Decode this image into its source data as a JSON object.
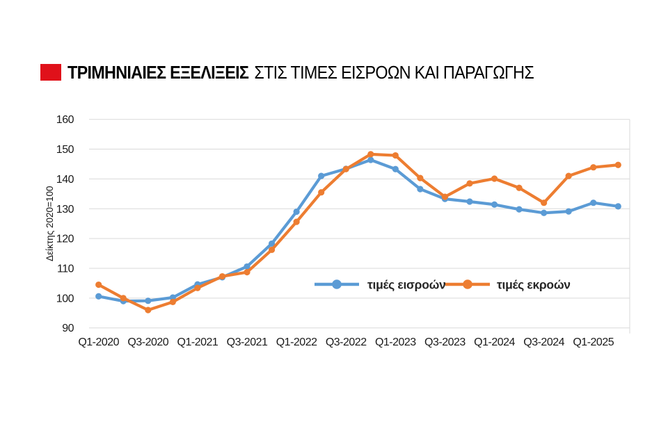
{
  "header": {
    "accent_color": "#e0111a",
    "title_bold": "ΤΡΙΜΗΝΙΑΙΕΣ ΕΞΕΛΙΞΕΙΣ",
    "title_rest": "ΣΤΙΣ ΤΙΜΕΣ ΕΙΣΡΟΩΝ ΚΑΙ ΠΑΡΑΓΩΓΗΣ"
  },
  "chart_data": {
    "type": "line",
    "title": "ΤΡΙΜΗΝΙΑΙΕΣ ΕΞΕΛΙΞΕΙΣ ΣΤΙΣ ΤΙΜΕΣ ΕΙΣΡΟΩΝ ΚΑΙ ΠΑΡΑΓΩΓΗΣ",
    "xlabel": "",
    "ylabel": "Δείκτης 2020=100",
    "ylim": [
      90,
      160
    ],
    "yticks": [
      90,
      100,
      110,
      120,
      130,
      140,
      150,
      160
    ],
    "grid": "horizontal",
    "legend_position": "inside-bottom-center",
    "categories": [
      "Q1-2020",
      "Q2-2020",
      "Q3-2020",
      "Q4-2020",
      "Q1-2021",
      "Q2-2021",
      "Q3-2021",
      "Q4-2021",
      "Q1-2022",
      "Q2-2022",
      "Q3-2022",
      "Q4-2022",
      "Q1-2023",
      "Q2-2023",
      "Q3-2023",
      "Q4-2023",
      "Q1-2024",
      "Q2-2024",
      "Q3-2024",
      "Q4-2024",
      "Q1-2025",
      "Q2-2025"
    ],
    "x_tick_labels": [
      "Q1-2020",
      "Q3-2020",
      "Q1-2021",
      "Q3-2021",
      "Q1-2022",
      "Q3-2022",
      "Q1-2023",
      "Q3-2023",
      "Q1-2024",
      "Q3-2024",
      "Q1-2025"
    ],
    "x_tick_every": 2,
    "series": [
      {
        "name": "τιμές εισροών",
        "color": "#5b9bd5",
        "values": [
          100.6,
          99.0,
          99.1,
          100.2,
          104.6,
          107.0,
          110.6,
          118.3,
          129.0,
          141.0,
          143.4,
          146.4,
          143.3,
          136.6,
          133.3,
          132.4,
          131.4,
          129.8,
          128.6,
          129.1,
          132.0,
          130.8
        ]
      },
      {
        "name": "τιμές εκροών",
        "color": "#ed7d31",
        "values": [
          104.5,
          100.0,
          96.0,
          98.7,
          103.4,
          107.3,
          108.7,
          116.2,
          125.6,
          135.5,
          143.3,
          148.3,
          147.9,
          140.3,
          134.0,
          138.5,
          140.1,
          137.0,
          132.0,
          141.0,
          143.9,
          144.7
        ]
      }
    ],
    "colors": {
      "gridline": "#d9d9d9",
      "tick_text": "#1a1a1a",
      "legend_text": "#262626"
    }
  }
}
